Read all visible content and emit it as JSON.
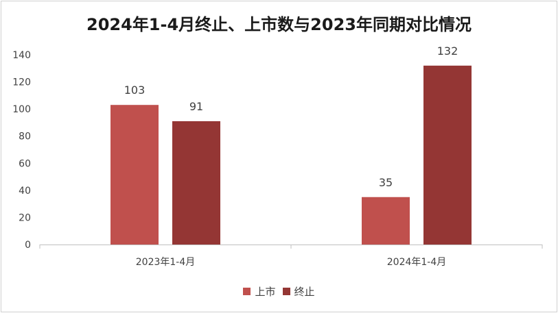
{
  "chart_data": {
    "type": "bar",
    "title": "2024年1-4月终止、上市数与2023年同期对比情况",
    "categories": [
      "2023年1-4月",
      "2024年1-4月"
    ],
    "series": [
      {
        "name": "上市",
        "values": [
          103,
          35
        ],
        "color": "#c0504d"
      },
      {
        "name": "终止",
        "values": [
          91,
          132
        ],
        "color": "#943634"
      }
    ],
    "ylim": [
      0,
      140
    ],
    "yticks": [
      0,
      20,
      40,
      60,
      80,
      100,
      120,
      140
    ],
    "xlabel": "",
    "ylabel": "",
    "grid": false,
    "legend": "bottom"
  }
}
